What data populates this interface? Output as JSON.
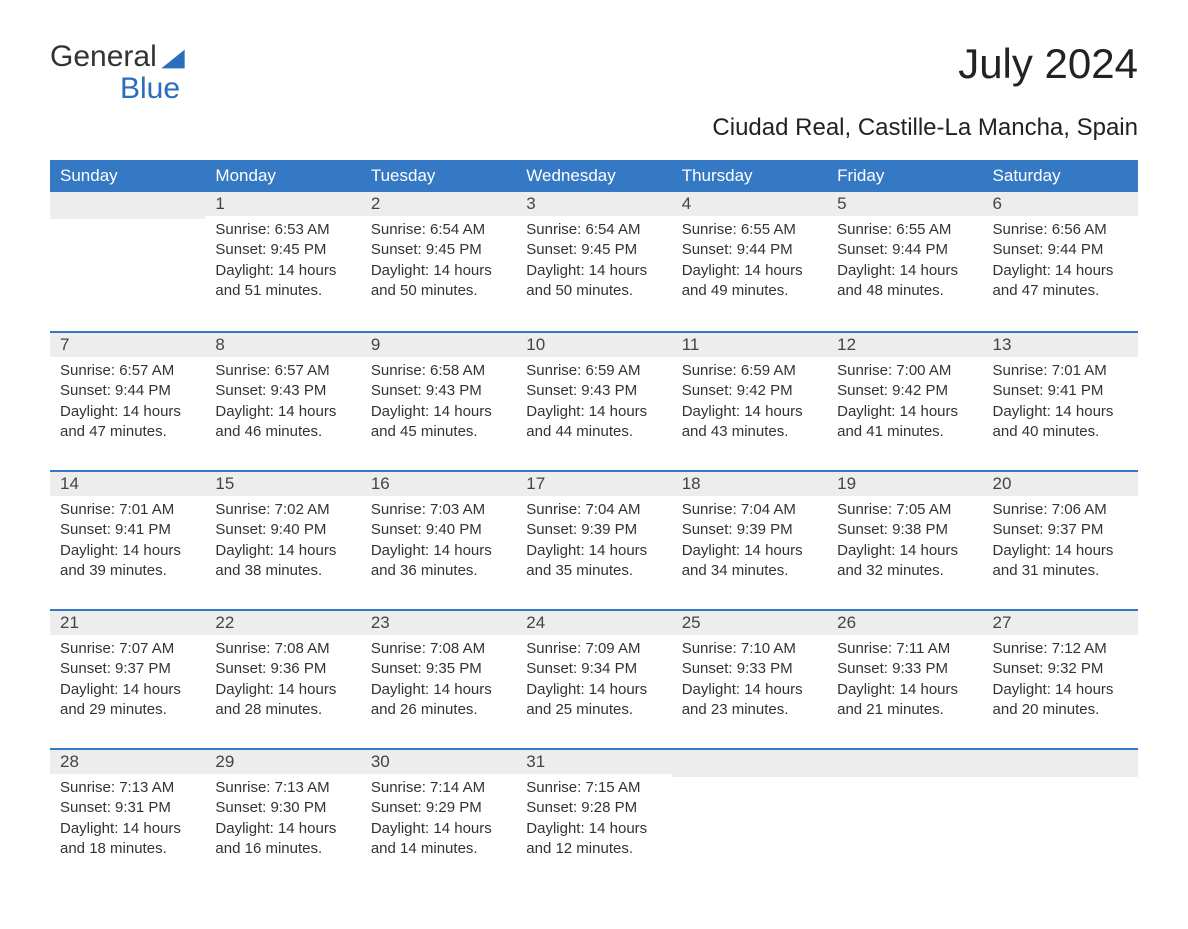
{
  "logo": {
    "part1": "General",
    "part2": "Blue"
  },
  "title": "July 2024",
  "subtitle": "Ciudad Real, Castille-La Mancha, Spain",
  "colors": {
    "header_bg": "#3578c4",
    "header_text": "#ffffff",
    "row_border": "#3578c4",
    "daynum_bg": "#ededed",
    "logo_accent": "#2a6ebb",
    "body_text": "#333333",
    "background": "#ffffff"
  },
  "typography": {
    "title_fontsize": 42,
    "subtitle_fontsize": 24,
    "header_fontsize": 17,
    "body_fontsize": 15,
    "logo_fontsize": 30
  },
  "weekdays": [
    "Sunday",
    "Monday",
    "Tuesday",
    "Wednesday",
    "Thursday",
    "Friday",
    "Saturday"
  ],
  "weeks": [
    [
      {
        "day": "",
        "sunrise": "",
        "sunset": "",
        "daylight_a": "",
        "daylight_b": ""
      },
      {
        "day": "1",
        "sunrise": "Sunrise: 6:53 AM",
        "sunset": "Sunset: 9:45 PM",
        "daylight_a": "Daylight: 14 hours",
        "daylight_b": "and 51 minutes."
      },
      {
        "day": "2",
        "sunrise": "Sunrise: 6:54 AM",
        "sunset": "Sunset: 9:45 PM",
        "daylight_a": "Daylight: 14 hours",
        "daylight_b": "and 50 minutes."
      },
      {
        "day": "3",
        "sunrise": "Sunrise: 6:54 AM",
        "sunset": "Sunset: 9:45 PM",
        "daylight_a": "Daylight: 14 hours",
        "daylight_b": "and 50 minutes."
      },
      {
        "day": "4",
        "sunrise": "Sunrise: 6:55 AM",
        "sunset": "Sunset: 9:44 PM",
        "daylight_a": "Daylight: 14 hours",
        "daylight_b": "and 49 minutes."
      },
      {
        "day": "5",
        "sunrise": "Sunrise: 6:55 AM",
        "sunset": "Sunset: 9:44 PM",
        "daylight_a": "Daylight: 14 hours",
        "daylight_b": "and 48 minutes."
      },
      {
        "day": "6",
        "sunrise": "Sunrise: 6:56 AM",
        "sunset": "Sunset: 9:44 PM",
        "daylight_a": "Daylight: 14 hours",
        "daylight_b": "and 47 minutes."
      }
    ],
    [
      {
        "day": "7",
        "sunrise": "Sunrise: 6:57 AM",
        "sunset": "Sunset: 9:44 PM",
        "daylight_a": "Daylight: 14 hours",
        "daylight_b": "and 47 minutes."
      },
      {
        "day": "8",
        "sunrise": "Sunrise: 6:57 AM",
        "sunset": "Sunset: 9:43 PM",
        "daylight_a": "Daylight: 14 hours",
        "daylight_b": "and 46 minutes."
      },
      {
        "day": "9",
        "sunrise": "Sunrise: 6:58 AM",
        "sunset": "Sunset: 9:43 PM",
        "daylight_a": "Daylight: 14 hours",
        "daylight_b": "and 45 minutes."
      },
      {
        "day": "10",
        "sunrise": "Sunrise: 6:59 AM",
        "sunset": "Sunset: 9:43 PM",
        "daylight_a": "Daylight: 14 hours",
        "daylight_b": "and 44 minutes."
      },
      {
        "day": "11",
        "sunrise": "Sunrise: 6:59 AM",
        "sunset": "Sunset: 9:42 PM",
        "daylight_a": "Daylight: 14 hours",
        "daylight_b": "and 43 minutes."
      },
      {
        "day": "12",
        "sunrise": "Sunrise: 7:00 AM",
        "sunset": "Sunset: 9:42 PM",
        "daylight_a": "Daylight: 14 hours",
        "daylight_b": "and 41 minutes."
      },
      {
        "day": "13",
        "sunrise": "Sunrise: 7:01 AM",
        "sunset": "Sunset: 9:41 PM",
        "daylight_a": "Daylight: 14 hours",
        "daylight_b": "and 40 minutes."
      }
    ],
    [
      {
        "day": "14",
        "sunrise": "Sunrise: 7:01 AM",
        "sunset": "Sunset: 9:41 PM",
        "daylight_a": "Daylight: 14 hours",
        "daylight_b": "and 39 minutes."
      },
      {
        "day": "15",
        "sunrise": "Sunrise: 7:02 AM",
        "sunset": "Sunset: 9:40 PM",
        "daylight_a": "Daylight: 14 hours",
        "daylight_b": "and 38 minutes."
      },
      {
        "day": "16",
        "sunrise": "Sunrise: 7:03 AM",
        "sunset": "Sunset: 9:40 PM",
        "daylight_a": "Daylight: 14 hours",
        "daylight_b": "and 36 minutes."
      },
      {
        "day": "17",
        "sunrise": "Sunrise: 7:04 AM",
        "sunset": "Sunset: 9:39 PM",
        "daylight_a": "Daylight: 14 hours",
        "daylight_b": "and 35 minutes."
      },
      {
        "day": "18",
        "sunrise": "Sunrise: 7:04 AM",
        "sunset": "Sunset: 9:39 PM",
        "daylight_a": "Daylight: 14 hours",
        "daylight_b": "and 34 minutes."
      },
      {
        "day": "19",
        "sunrise": "Sunrise: 7:05 AM",
        "sunset": "Sunset: 9:38 PM",
        "daylight_a": "Daylight: 14 hours",
        "daylight_b": "and 32 minutes."
      },
      {
        "day": "20",
        "sunrise": "Sunrise: 7:06 AM",
        "sunset": "Sunset: 9:37 PM",
        "daylight_a": "Daylight: 14 hours",
        "daylight_b": "and 31 minutes."
      }
    ],
    [
      {
        "day": "21",
        "sunrise": "Sunrise: 7:07 AM",
        "sunset": "Sunset: 9:37 PM",
        "daylight_a": "Daylight: 14 hours",
        "daylight_b": "and 29 minutes."
      },
      {
        "day": "22",
        "sunrise": "Sunrise: 7:08 AM",
        "sunset": "Sunset: 9:36 PM",
        "daylight_a": "Daylight: 14 hours",
        "daylight_b": "and 28 minutes."
      },
      {
        "day": "23",
        "sunrise": "Sunrise: 7:08 AM",
        "sunset": "Sunset: 9:35 PM",
        "daylight_a": "Daylight: 14 hours",
        "daylight_b": "and 26 minutes."
      },
      {
        "day": "24",
        "sunrise": "Sunrise: 7:09 AM",
        "sunset": "Sunset: 9:34 PM",
        "daylight_a": "Daylight: 14 hours",
        "daylight_b": "and 25 minutes."
      },
      {
        "day": "25",
        "sunrise": "Sunrise: 7:10 AM",
        "sunset": "Sunset: 9:33 PM",
        "daylight_a": "Daylight: 14 hours",
        "daylight_b": "and 23 minutes."
      },
      {
        "day": "26",
        "sunrise": "Sunrise: 7:11 AM",
        "sunset": "Sunset: 9:33 PM",
        "daylight_a": "Daylight: 14 hours",
        "daylight_b": "and 21 minutes."
      },
      {
        "day": "27",
        "sunrise": "Sunrise: 7:12 AM",
        "sunset": "Sunset: 9:32 PM",
        "daylight_a": "Daylight: 14 hours",
        "daylight_b": "and 20 minutes."
      }
    ],
    [
      {
        "day": "28",
        "sunrise": "Sunrise: 7:13 AM",
        "sunset": "Sunset: 9:31 PM",
        "daylight_a": "Daylight: 14 hours",
        "daylight_b": "and 18 minutes."
      },
      {
        "day": "29",
        "sunrise": "Sunrise: 7:13 AM",
        "sunset": "Sunset: 9:30 PM",
        "daylight_a": "Daylight: 14 hours",
        "daylight_b": "and 16 minutes."
      },
      {
        "day": "30",
        "sunrise": "Sunrise: 7:14 AM",
        "sunset": "Sunset: 9:29 PM",
        "daylight_a": "Daylight: 14 hours",
        "daylight_b": "and 14 minutes."
      },
      {
        "day": "31",
        "sunrise": "Sunrise: 7:15 AM",
        "sunset": "Sunset: 9:28 PM",
        "daylight_a": "Daylight: 14 hours",
        "daylight_b": "and 12 minutes."
      },
      {
        "day": "",
        "sunrise": "",
        "sunset": "",
        "daylight_a": "",
        "daylight_b": ""
      },
      {
        "day": "",
        "sunrise": "",
        "sunset": "",
        "daylight_a": "",
        "daylight_b": ""
      },
      {
        "day": "",
        "sunrise": "",
        "sunset": "",
        "daylight_a": "",
        "daylight_b": ""
      }
    ]
  ]
}
